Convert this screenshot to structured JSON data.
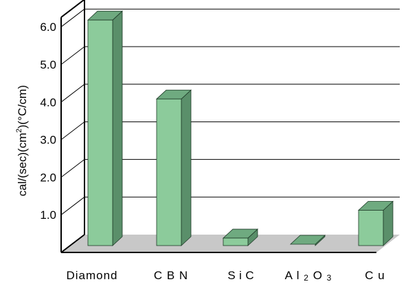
{
  "chart_data": {
    "type": "bar",
    "categories": [
      "Diamond",
      "CBN",
      "SiC",
      "Al2O3",
      "Cu"
    ],
    "category_labels": [
      {
        "main": "Diamond",
        "sub": ""
      },
      {
        "main": "C B N",
        "sub": ""
      },
      {
        "main": "S i C",
        "sub": ""
      },
      {
        "main": "A l 2 O 3",
        "sub": ""
      },
      {
        "main": "C u",
        "sub": ""
      }
    ],
    "values": [
      6.0,
      3.9,
      0.2,
      0.03,
      0.94
    ],
    "ylabel_parts": [
      "cal/(sec)(cm",
      "2",
      ")(°C/cm)"
    ],
    "yticks": [
      "1.0",
      "2.0",
      "3.0",
      "4.0",
      "5.0",
      "6.0"
    ],
    "ylim": [
      0,
      6.0
    ],
    "grid": true,
    "colors": {
      "bar_front": "#8ccb9b",
      "bar_side": "#5a8f6a",
      "bar_top": "#6faa80",
      "floor": "#c8c8c8",
      "axis": "#000000"
    }
  }
}
